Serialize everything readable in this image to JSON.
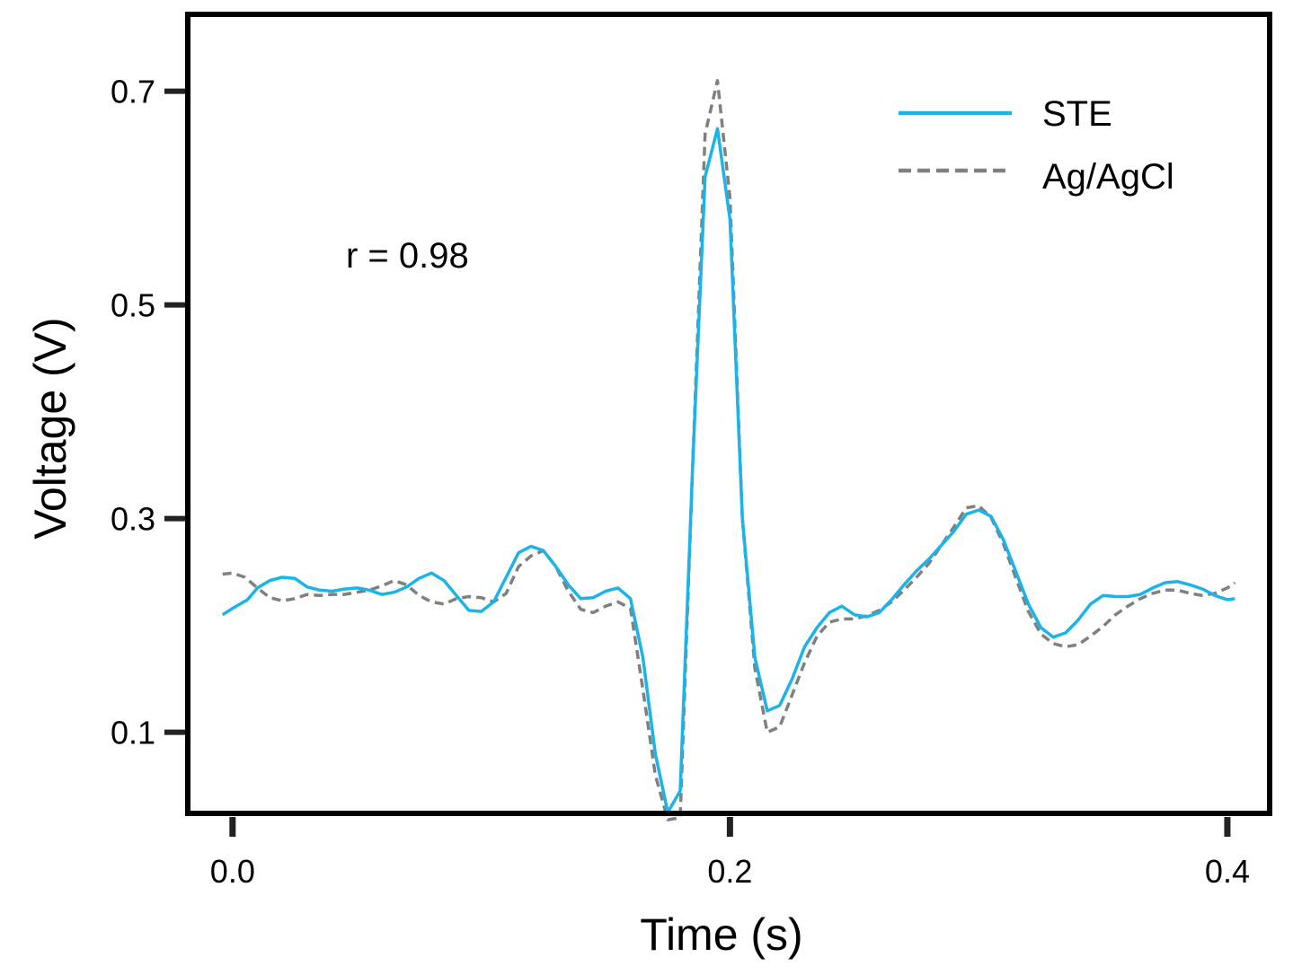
{
  "chart_data": {
    "type": "line",
    "title": "",
    "xlabel": "Time (s)",
    "ylabel": "Voltage (V)",
    "xlim": [
      -0.018,
      0.417
    ],
    "ylim": [
      0.024,
      0.772
    ],
    "xticks": [
      0.0,
      0.2,
      0.4
    ],
    "xtick_labels": [
      "0.0",
      "0.2",
      "0.4"
    ],
    "yticks": [
      0.1,
      0.3,
      0.5,
      0.7
    ],
    "ytick_labels": [
      "0.1",
      "0.3",
      "0.5",
      "0.7"
    ],
    "grid": false,
    "legend_position": "top-right",
    "annotation": "r = 0.98",
    "colors": {
      "STE": "#1ab4e8",
      "Ag/AgCl": "#808080",
      "frame": "#000000",
      "ticks": "#222222"
    },
    "series": [
      {
        "name": "STE",
        "style": "solid",
        "x": [
          -0.004,
          0.0,
          0.006,
          0.01,
          0.015,
          0.02,
          0.025,
          0.03,
          0.035,
          0.04,
          0.045,
          0.05,
          0.055,
          0.06,
          0.065,
          0.07,
          0.075,
          0.08,
          0.085,
          0.09,
          0.095,
          0.1,
          0.105,
          0.11,
          0.115,
          0.12,
          0.125,
          0.13,
          0.135,
          0.14,
          0.145,
          0.15,
          0.155,
          0.16,
          0.165,
          0.17,
          0.175,
          0.18,
          0.185,
          0.19,
          0.195,
          0.2,
          0.205,
          0.21,
          0.215,
          0.22,
          0.225,
          0.23,
          0.235,
          0.24,
          0.245,
          0.25,
          0.255,
          0.26,
          0.265,
          0.27,
          0.275,
          0.28,
          0.285,
          0.29,
          0.295,
          0.3,
          0.305,
          0.31,
          0.315,
          0.32,
          0.325,
          0.33,
          0.335,
          0.34,
          0.345,
          0.35,
          0.355,
          0.36,
          0.365,
          0.37,
          0.375,
          0.38,
          0.385,
          0.39,
          0.395,
          0.4,
          0.403
        ],
        "values": [
          0.21,
          0.216,
          0.224,
          0.235,
          0.242,
          0.245,
          0.244,
          0.236,
          0.233,
          0.232,
          0.234,
          0.235,
          0.233,
          0.229,
          0.231,
          0.236,
          0.244,
          0.249,
          0.242,
          0.228,
          0.214,
          0.213,
          0.222,
          0.245,
          0.268,
          0.274,
          0.27,
          0.255,
          0.238,
          0.225,
          0.226,
          0.232,
          0.235,
          0.225,
          0.17,
          0.08,
          0.025,
          0.045,
          0.35,
          0.62,
          0.665,
          0.58,
          0.3,
          0.17,
          0.12,
          0.125,
          0.15,
          0.18,
          0.198,
          0.212,
          0.218,
          0.21,
          0.208,
          0.212,
          0.224,
          0.238,
          0.251,
          0.262,
          0.275,
          0.288,
          0.304,
          0.308,
          0.302,
          0.28,
          0.25,
          0.22,
          0.198,
          0.189,
          0.193,
          0.205,
          0.22,
          0.228,
          0.227,
          0.227,
          0.229,
          0.235,
          0.24,
          0.241,
          0.238,
          0.234,
          0.228,
          0.224,
          0.225
        ]
      },
      {
        "name": "Ag/AgCl",
        "style": "dashed",
        "x": [
          -0.004,
          0.0,
          0.005,
          0.01,
          0.015,
          0.02,
          0.025,
          0.03,
          0.035,
          0.04,
          0.045,
          0.05,
          0.055,
          0.06,
          0.065,
          0.07,
          0.075,
          0.08,
          0.085,
          0.09,
          0.095,
          0.1,
          0.105,
          0.11,
          0.115,
          0.12,
          0.125,
          0.13,
          0.135,
          0.14,
          0.145,
          0.15,
          0.155,
          0.16,
          0.165,
          0.17,
          0.175,
          0.18,
          0.185,
          0.19,
          0.195,
          0.2,
          0.205,
          0.21,
          0.215,
          0.22,
          0.225,
          0.23,
          0.235,
          0.24,
          0.245,
          0.25,
          0.255,
          0.26,
          0.265,
          0.27,
          0.275,
          0.28,
          0.285,
          0.29,
          0.295,
          0.3,
          0.305,
          0.31,
          0.315,
          0.32,
          0.325,
          0.33,
          0.335,
          0.34,
          0.345,
          0.35,
          0.355,
          0.36,
          0.365,
          0.37,
          0.375,
          0.38,
          0.385,
          0.39,
          0.395,
          0.4,
          0.403
        ],
        "values": [
          0.248,
          0.249,
          0.245,
          0.235,
          0.226,
          0.223,
          0.225,
          0.229,
          0.228,
          0.229,
          0.229,
          0.231,
          0.233,
          0.237,
          0.242,
          0.238,
          0.228,
          0.222,
          0.22,
          0.225,
          0.227,
          0.226,
          0.222,
          0.23,
          0.255,
          0.265,
          0.27,
          0.255,
          0.232,
          0.215,
          0.212,
          0.218,
          0.222,
          0.216,
          0.14,
          0.06,
          0.018,
          0.02,
          0.35,
          0.66,
          0.71,
          0.6,
          0.3,
          0.16,
          0.1,
          0.105,
          0.135,
          0.165,
          0.19,
          0.203,
          0.206,
          0.206,
          0.209,
          0.214,
          0.222,
          0.233,
          0.245,
          0.258,
          0.275,
          0.292,
          0.31,
          0.312,
          0.301,
          0.276,
          0.244,
          0.213,
          0.192,
          0.183,
          0.18,
          0.182,
          0.19,
          0.199,
          0.21,
          0.218,
          0.225,
          0.23,
          0.233,
          0.233,
          0.23,
          0.228,
          0.23,
          0.235,
          0.24
        ]
      }
    ]
  }
}
